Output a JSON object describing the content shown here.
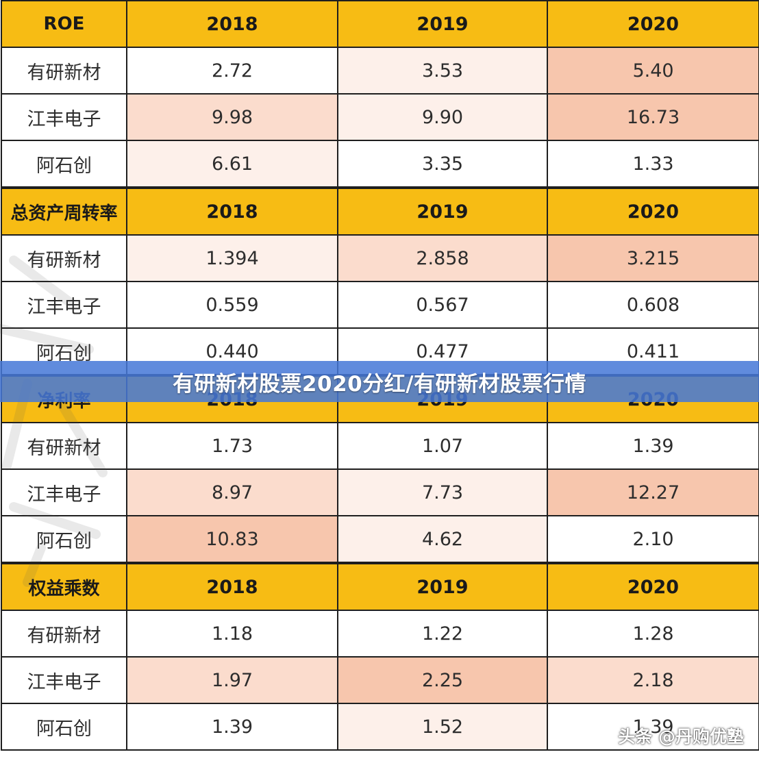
{
  "colors": {
    "header_bg": "#f7bc14",
    "cell_plain": "#ffffff",
    "cell_light": "#fdf0ea",
    "cell_mid": "#fbdccd",
    "cell_strong": "#f7c6ad",
    "banner_bg": "#4678d7"
  },
  "banner": {
    "title": "有研新材股票2020分红/有研新材股票行情"
  },
  "credit": {
    "text": "头条 @丹购优塾"
  },
  "tables": [
    {
      "metric": "ROE",
      "years": [
        "2018",
        "2019",
        "2020"
      ],
      "rows": [
        {
          "company": "有研新材",
          "values": [
            "2.72",
            "3.53",
            "5.40"
          ],
          "shade": [
            "plain",
            "light",
            "strong"
          ]
        },
        {
          "company": "江丰电子",
          "values": [
            "9.98",
            "9.90",
            "16.73"
          ],
          "shade": [
            "mid",
            "light",
            "strong"
          ]
        },
        {
          "company": "阿石创",
          "values": [
            "6.61",
            "3.35",
            "1.33"
          ],
          "shade": [
            "light",
            "plain",
            "plain"
          ]
        }
      ]
    },
    {
      "metric": "总资产周转率",
      "years": [
        "2018",
        "2019",
        "2020"
      ],
      "rows": [
        {
          "company": "有研新材",
          "values": [
            "1.394",
            "2.858",
            "3.215"
          ],
          "shade": [
            "light",
            "mid",
            "strong"
          ]
        },
        {
          "company": "江丰电子",
          "values": [
            "0.559",
            "0.567",
            "0.608"
          ],
          "shade": [
            "plain",
            "plain",
            "plain"
          ]
        },
        {
          "company": "阿石创",
          "values": [
            "0.440",
            "0.477",
            "0.411"
          ],
          "shade": [
            "plain",
            "plain",
            "plain"
          ]
        }
      ]
    },
    {
      "metric": "净利率",
      "years": [
        "2018",
        "2019",
        "2020"
      ],
      "rows": [
        {
          "company": "有研新材",
          "values": [
            "1.73",
            "1.07",
            "1.39"
          ],
          "shade": [
            "plain",
            "plain",
            "plain"
          ]
        },
        {
          "company": "江丰电子",
          "values": [
            "8.97",
            "7.73",
            "12.27"
          ],
          "shade": [
            "mid",
            "light",
            "strong"
          ]
        },
        {
          "company": "阿石创",
          "values": [
            "10.83",
            "4.62",
            "2.10"
          ],
          "shade": [
            "strong",
            "light",
            "plain"
          ]
        }
      ]
    },
    {
      "metric": "权益乘数",
      "years": [
        "2018",
        "2019",
        "2020"
      ],
      "rows": [
        {
          "company": "有研新材",
          "values": [
            "1.18",
            "1.22",
            "1.28"
          ],
          "shade": [
            "plain",
            "plain",
            "plain"
          ]
        },
        {
          "company": "江丰电子",
          "values": [
            "1.97",
            "2.25",
            "2.18"
          ],
          "shade": [
            "mid",
            "strong",
            "mid"
          ]
        },
        {
          "company": "阿石创",
          "values": [
            "1.39",
            "1.52",
            "1.39"
          ],
          "shade": [
            "plain",
            "light",
            "plain"
          ]
        }
      ]
    }
  ]
}
